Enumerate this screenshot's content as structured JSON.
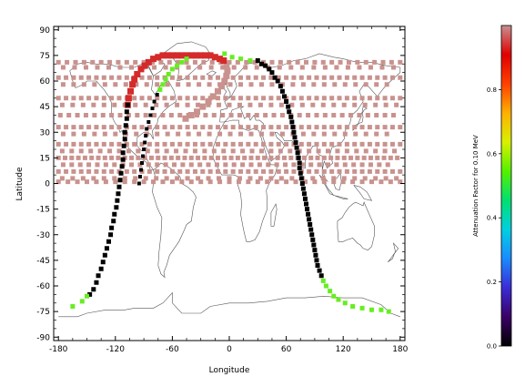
{
  "chart_data": {
    "type": "scatter",
    "xlabel": "Longitude",
    "ylabel": "Latitude",
    "xlim": [
      -185,
      185
    ],
    "ylim": [
      -92,
      92
    ],
    "x_ticks": [
      -180,
      -120,
      -60,
      0,
      60,
      120,
      180
    ],
    "y_ticks": [
      90,
      75,
      60,
      45,
      30,
      15,
      0,
      -15,
      -30,
      -45,
      -60,
      -75,
      -90
    ],
    "x_tick_labels": [
      "-180",
      "-120",
      "-60",
      "0",
      "60",
      "120",
      "180"
    ],
    "y_tick_labels": [
      "90",
      "75",
      "60",
      "45",
      "30",
      "15",
      "0",
      "-15",
      "-30",
      "-45",
      "-60",
      "-75",
      "-90"
    ],
    "colorbar": {
      "label": "Attenuation Factor for 0.10 MeV",
      "range": [
        0.0,
        1.0
      ],
      "ticks": [
        0.0,
        0.2,
        0.4,
        0.6,
        0.8
      ],
      "tick_labels": [
        "0.0",
        "0.2",
        "0.4",
        "0.6",
        "0.8"
      ],
      "colors": [
        "#000000",
        "#3a0066",
        "#3a2cd6",
        "#1a8bff",
        "#00d0e0",
        "#00e070",
        "#55f000",
        "#d8f000",
        "#ffb000",
        "#ff4000",
        "#e00000",
        "#c89090"
      ]
    },
    "colors": {
      "grid_points": "#c9928e",
      "track_black": "#000000",
      "track_green": "#66ee22",
      "track_red": "#d42a2a",
      "arc_pink": "#c9928e",
      "coastline": "#555555"
    },
    "grid_points_rows": [
      {
        "lat": 71,
        "lon_start": -180,
        "lon_end": 180,
        "step": 9
      },
      {
        "lat": 68,
        "lon_start": -175,
        "lon_end": 175,
        "step": 12
      },
      {
        "lat": 62,
        "lon_start": -180,
        "lon_end": 180,
        "step": 8
      },
      {
        "lat": 58,
        "lon_start": -175,
        "lon_end": 175,
        "step": 11
      },
      {
        "lat": 50,
        "lon_start": -180,
        "lon_end": 180,
        "step": 8
      },
      {
        "lat": 46,
        "lon_start": -176,
        "lon_end": 176,
        "step": 11
      },
      {
        "lat": 40,
        "lon_start": -178,
        "lon_end": 178,
        "step": 9
      },
      {
        "lat": 33,
        "lon_start": -180,
        "lon_end": 180,
        "step": 8
      },
      {
        "lat": 29,
        "lon_start": -175,
        "lon_end": 175,
        "step": 11
      },
      {
        "lat": 23,
        "lon_start": -180,
        "lon_end": 180,
        "step": 8
      },
      {
        "lat": 19,
        "lon_start": -176,
        "lon_end": 176,
        "step": 10
      },
      {
        "lat": 15,
        "lon_start": -180,
        "lon_end": 180,
        "step": 7
      },
      {
        "lat": 11,
        "lon_start": -175,
        "lon_end": 175,
        "step": 9
      },
      {
        "lat": 7,
        "lon_start": -180,
        "lon_end": 180,
        "step": 8
      },
      {
        "lat": 3,
        "lon_start": -176,
        "lon_end": 176,
        "step": 11
      },
      {
        "lat": 1,
        "lon_start": -180,
        "lon_end": 180,
        "step": 10
      }
    ],
    "track_black_left": [
      [
        -147,
        -65
      ],
      [
        -143,
        -62
      ],
      [
        -140,
        -58
      ],
      [
        -138,
        -54
      ],
      [
        -135,
        -50
      ],
      [
        -133,
        -46
      ],
      [
        -131,
        -42
      ],
      [
        -129,
        -38
      ],
      [
        -127,
        -34
      ],
      [
        -125,
        -30
      ],
      [
        -124,
        -26
      ],
      [
        -122,
        -22
      ],
      [
        -121,
        -18
      ],
      [
        -119,
        -14
      ],
      [
        -118,
        -10
      ],
      [
        -117,
        -6
      ],
      [
        -116,
        -2
      ],
      [
        -115,
        2
      ],
      [
        -114,
        6
      ],
      [
        -113,
        10
      ],
      [
        -112,
        14
      ],
      [
        -112,
        18
      ],
      [
        -111,
        22
      ],
      [
        -110,
        26
      ],
      [
        -110,
        30
      ],
      [
        -109,
        34
      ],
      [
        -108,
        38
      ],
      [
        -108,
        42
      ],
      [
        -107,
        46
      ]
    ],
    "track_black_mid": [
      [
        -95,
        0
      ],
      [
        -94,
        4
      ],
      [
        -93,
        8
      ],
      [
        -92,
        12
      ],
      [
        -91,
        16
      ],
      [
        -90,
        20
      ],
      [
        -89,
        24
      ],
      [
        -88,
        28
      ],
      [
        -87,
        32
      ],
      [
        -85,
        36
      ],
      [
        -83,
        40
      ],
      [
        -81,
        44
      ],
      [
        -79,
        48
      ],
      [
        -76,
        52
      ]
    ],
    "track_black_right": [
      [
        30,
        72
      ],
      [
        34,
        70
      ],
      [
        38,
        69
      ],
      [
        42,
        67
      ],
      [
        45,
        65
      ],
      [
        48,
        62
      ],
      [
        51,
        60
      ],
      [
        54,
        57
      ],
      [
        56,
        54
      ],
      [
        58,
        51
      ],
      [
        60,
        48
      ],
      [
        62,
        45
      ],
      [
        63,
        42
      ],
      [
        65,
        39
      ],
      [
        66,
        36
      ],
      [
        67,
        33
      ],
      [
        68,
        30
      ],
      [
        69,
        27
      ],
      [
        70,
        24
      ],
      [
        71,
        21
      ],
      [
        72,
        18
      ],
      [
        73,
        15
      ],
      [
        74,
        12
      ],
      [
        74,
        9
      ],
      [
        75,
        6
      ],
      [
        76,
        3
      ],
      [
        77,
        0
      ],
      [
        78,
        -3
      ],
      [
        79,
        -6
      ],
      [
        80,
        -9
      ],
      [
        81,
        -12
      ],
      [
        82,
        -15
      ],
      [
        83,
        -18
      ],
      [
        84,
        -21
      ],
      [
        85,
        -24
      ],
      [
        86,
        -27
      ],
      [
        87,
        -30
      ],
      [
        88,
        -33
      ],
      [
        89,
        -36
      ],
      [
        90,
        -39
      ],
      [
        91,
        -42
      ],
      [
        92,
        -45
      ],
      [
        93,
        -48
      ],
      [
        95,
        -51
      ],
      [
        97,
        -54
      ]
    ],
    "track_green": [
      [
        -165,
        -72
      ],
      [
        -155,
        -69
      ],
      [
        -150,
        -66
      ],
      [
        -73,
        55
      ],
      [
        -70,
        58
      ],
      [
        -67,
        61
      ],
      [
        -64,
        64
      ],
      [
        -60,
        67
      ],
      [
        -55,
        69
      ],
      [
        -50,
        71
      ],
      [
        -45,
        73
      ],
      [
        -5,
        76
      ],
      [
        3,
        74
      ],
      [
        12,
        73
      ],
      [
        22,
        72
      ],
      [
        99,
        -57
      ],
      [
        102,
        -60
      ],
      [
        106,
        -63
      ],
      [
        110,
        -66
      ],
      [
        115,
        -68
      ],
      [
        122,
        -70
      ],
      [
        130,
        -72
      ],
      [
        140,
        -73
      ],
      [
        150,
        -74
      ],
      [
        160,
        -74
      ],
      [
        168,
        -75
      ]
    ],
    "track_red": [
      [
        -107,
        46
      ],
      [
        -106,
        50
      ],
      [
        -104,
        54
      ],
      [
        -102,
        58
      ],
      [
        -100,
        61
      ],
      [
        -97,
        64
      ],
      [
        -93,
        67
      ],
      [
        -89,
        69
      ],
      [
        -85,
        71
      ],
      [
        -80,
        73
      ],
      [
        -75,
        74
      ],
      [
        -70,
        75
      ],
      [
        -65,
        75
      ],
      [
        -60,
        75
      ],
      [
        -55,
        75
      ],
      [
        -50,
        75
      ],
      [
        -45,
        75
      ],
      [
        -40,
        75
      ],
      [
        -35,
        75
      ],
      [
        -30,
        75
      ],
      [
        -25,
        75
      ],
      [
        -20,
        75
      ],
      [
        -15,
        74
      ],
      [
        -10,
        73
      ],
      [
        -6,
        72
      ]
    ],
    "arc_pink": [
      [
        -6,
        72
      ],
      [
        -3,
        69
      ],
      [
        -2,
        66
      ],
      [
        -3,
        63
      ],
      [
        -5,
        60
      ],
      [
        -8,
        57
      ],
      [
        -12,
        54
      ],
      [
        -17,
        51
      ],
      [
        -22,
        48
      ],
      [
        -28,
        45
      ],
      [
        -34,
        42
      ],
      [
        -40,
        40
      ],
      [
        -46,
        38
      ]
    ]
  }
}
